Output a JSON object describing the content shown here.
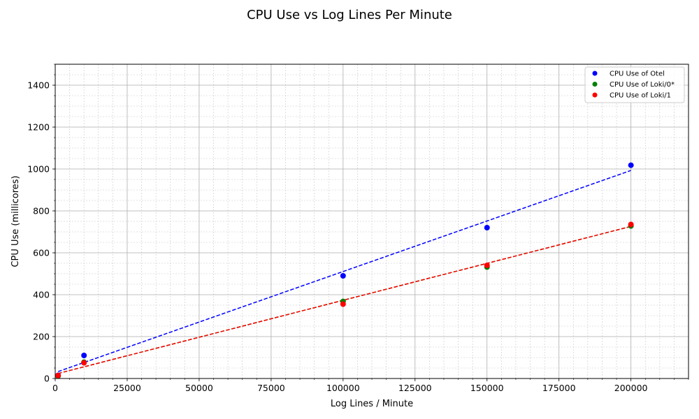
{
  "chart_data": {
    "type": "scatter",
    "title": "CPU Use vs Log Lines Per Minute",
    "xlabel": "Log Lines / Minute",
    "ylabel": "CPU Use (millicores)",
    "xlim": [
      0,
      220000
    ],
    "ylim": [
      0,
      1500
    ],
    "x_ticks": [
      0,
      25000,
      50000,
      75000,
      100000,
      125000,
      150000,
      175000,
      200000
    ],
    "y_ticks": [
      0,
      200,
      400,
      600,
      800,
      1000,
      1200,
      1400
    ],
    "x_minor_step": 5000,
    "y_minor_step": 50,
    "grid": true,
    "legend_position": "top-right",
    "series": [
      {
        "name": "CPU Use of Otel",
        "color": "#0000ff",
        "x": [
          1000,
          10000,
          100000,
          150000,
          200000
        ],
        "y": [
          15,
          110,
          490,
          720,
          1018
        ],
        "trend": {
          "x": [
            1000,
            200000
          ],
          "y": [
            33,
            993
          ]
        }
      },
      {
        "name": "CPU Use of Loki/0*",
        "color": "#008000",
        "x": [
          1000,
          10000,
          100000,
          150000,
          200000
        ],
        "y": [
          12,
          78,
          368,
          532,
          728
        ],
        "trend": {
          "x": [
            1000,
            200000
          ],
          "y": [
            24,
            726
          ]
        }
      },
      {
        "name": "CPU Use of Loki/1",
        "color": "#ff0000",
        "x": [
          1000,
          10000,
          100000,
          150000,
          200000
        ],
        "y": [
          14,
          75,
          355,
          540,
          735
        ],
        "trend": {
          "x": [
            1000,
            200000
          ],
          "y": [
            24,
            726
          ]
        }
      }
    ]
  }
}
